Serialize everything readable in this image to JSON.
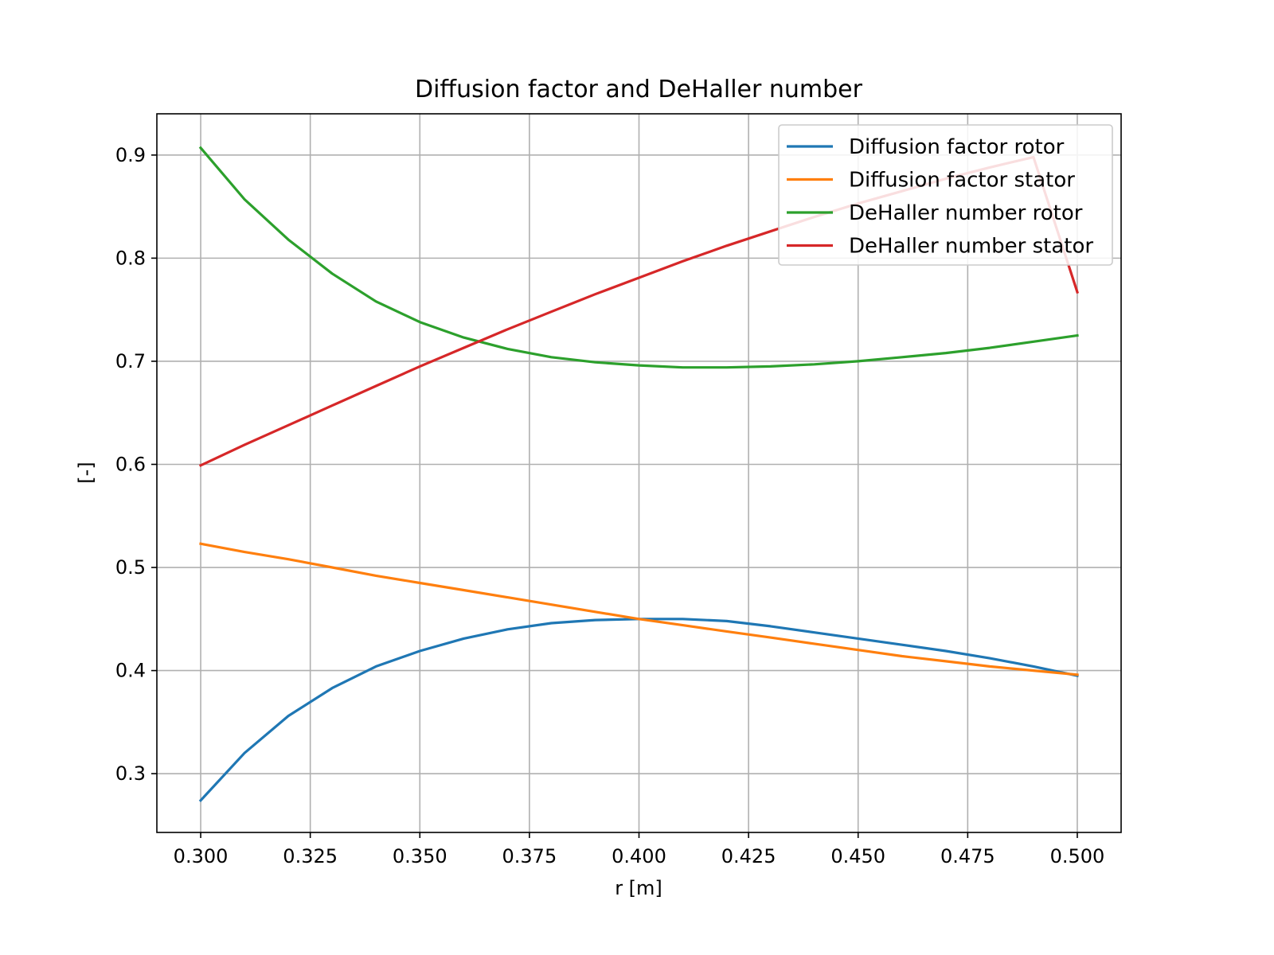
{
  "chart_data": {
    "type": "line",
    "title": "Diffusion factor and DeHaller number",
    "xlabel": "r [m]",
    "ylabel": "[-]",
    "xlim": [
      0.29,
      0.51
    ],
    "ylim": [
      0.243,
      0.94
    ],
    "x_ticks": [
      0.3,
      0.325,
      0.35,
      0.375,
      0.4,
      0.425,
      0.45,
      0.475,
      0.5
    ],
    "x_tick_labels": [
      "0.300",
      "0.325",
      "0.350",
      "0.375",
      "0.400",
      "0.425",
      "0.450",
      "0.475",
      "0.500"
    ],
    "y_ticks": [
      0.3,
      0.4,
      0.5,
      0.6,
      0.7,
      0.8,
      0.9
    ],
    "y_tick_labels": [
      "0.3",
      "0.4",
      "0.5",
      "0.6",
      "0.7",
      "0.8",
      "0.9"
    ],
    "grid": true,
    "legend_position": "upper right",
    "x": [
      0.3,
      0.31,
      0.32,
      0.33,
      0.34,
      0.35,
      0.36,
      0.37,
      0.38,
      0.39,
      0.4,
      0.41,
      0.42,
      0.43,
      0.44,
      0.45,
      0.46,
      0.47,
      0.48,
      0.49,
      0.5
    ],
    "series": [
      {
        "name": "Diffusion factor rotor",
        "color": "#1f77b4",
        "values": [
          0.274,
          0.32,
          0.356,
          0.383,
          0.404,
          0.419,
          0.431,
          0.44,
          0.446,
          0.449,
          0.45,
          0.45,
          0.448,
          0.443,
          0.437,
          0.431,
          0.425,
          0.419,
          0.412,
          0.404,
          0.395
        ]
      },
      {
        "name": "Diffusion factor stator",
        "color": "#ff7f0e",
        "values": [
          0.523,
          0.515,
          0.508,
          0.5,
          0.492,
          0.485,
          0.478,
          0.471,
          0.464,
          0.457,
          0.45,
          0.444,
          0.438,
          0.432,
          0.426,
          0.42,
          0.414,
          0.409,
          0.404,
          0.4,
          0.396
        ]
      },
      {
        "name": "DeHaller number rotor",
        "color": "#2ca02c",
        "values": [
          0.907,
          0.857,
          0.818,
          0.785,
          0.758,
          0.738,
          0.723,
          0.712,
          0.704,
          0.699,
          0.696,
          0.694,
          0.694,
          0.695,
          0.697,
          0.7,
          0.704,
          0.708,
          0.713,
          0.719,
          0.725
        ]
      },
      {
        "name": "DeHaller number stator",
        "color": "#d62728",
        "values": [
          0.599,
          0.619,
          0.638,
          0.657,
          0.676,
          0.695,
          0.713,
          0.731,
          0.748,
          0.765,
          0.781,
          0.797,
          0.812,
          0.826,
          0.84,
          0.853,
          0.865,
          0.877,
          0.888,
          0.898,
          0.767
        ]
      }
    ]
  }
}
